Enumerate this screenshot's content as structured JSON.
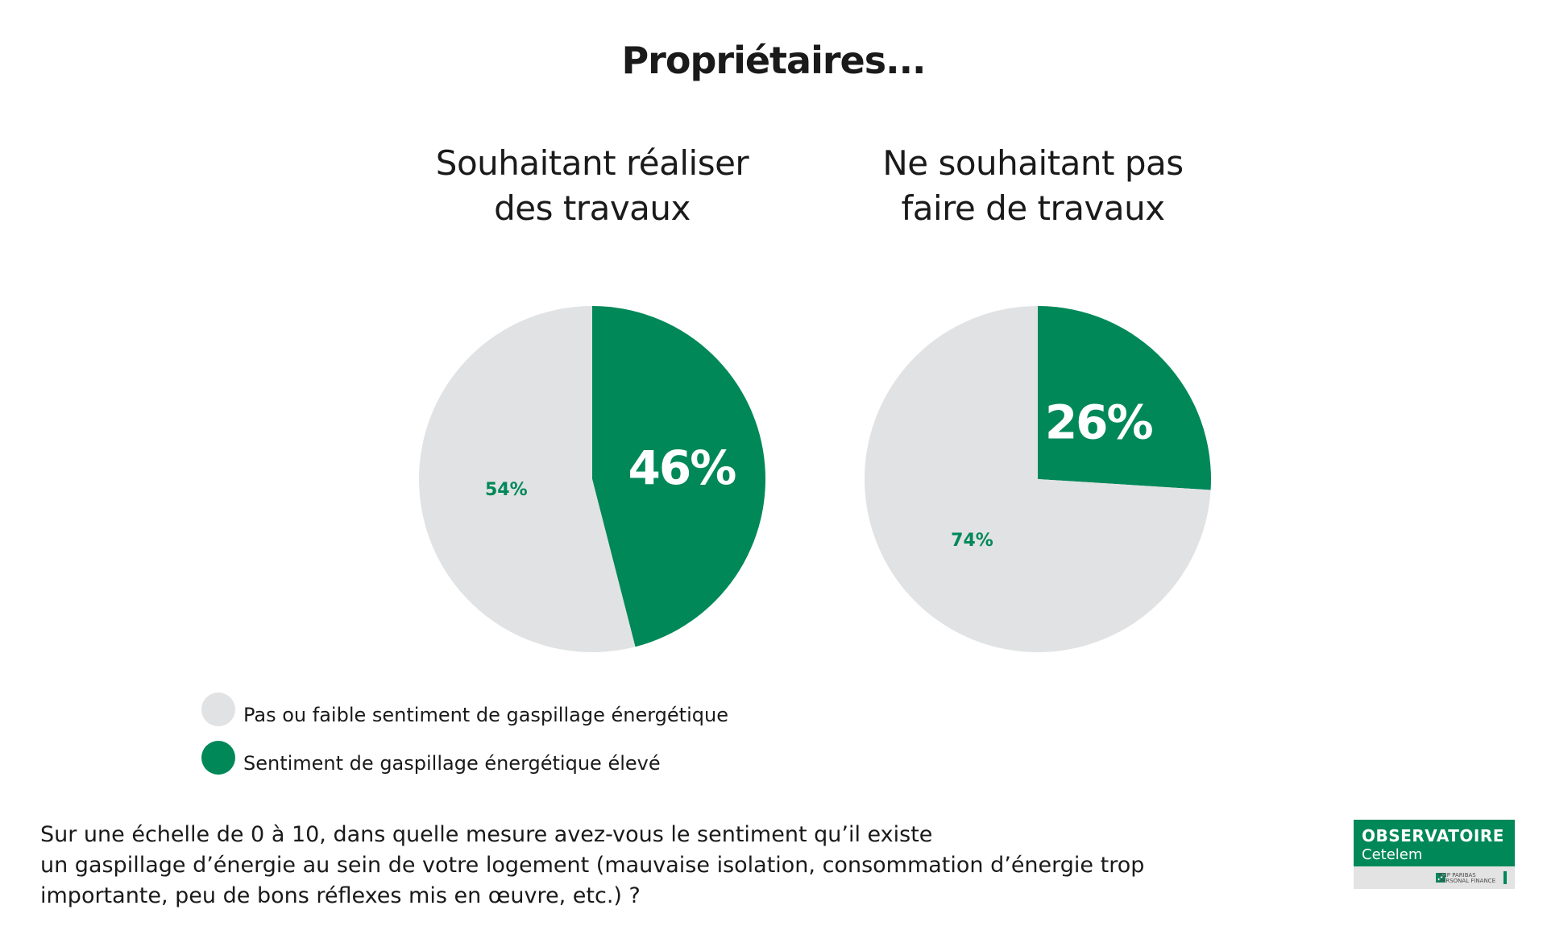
{
  "title": "Propriétaires...",
  "colors": {
    "green": "#008859",
    "grey": "#e1e2e3",
    "white": "#ffffff"
  },
  "chart_data": [
    {
      "type": "pie",
      "title": "Souhaitant réaliser des travaux",
      "title_lines": [
        "Souhaitant réaliser",
        "des travaux"
      ],
      "slices": [
        {
          "name": "Sentiment de gaspillage énergétique élevé",
          "value": 46,
          "label": "46%",
          "color": "#008859"
        },
        {
          "name": "Pas ou faible sentiment de gaspillage énergétique",
          "value": 54,
          "label": "54%",
          "color": "#e1e2e3"
        }
      ]
    },
    {
      "type": "pie",
      "title": "Ne souhaitant pas faire de travaux",
      "title_lines": [
        "Ne souhaitant pas",
        "faire de travaux"
      ],
      "slices": [
        {
          "name": "Sentiment de gaspillage énergétique élevé",
          "value": 26,
          "label": "26%",
          "color": "#008859"
        },
        {
          "name": "Pas ou faible sentiment de gaspillage énergétique",
          "value": 74,
          "label": "74%",
          "color": "#e1e2e3"
        }
      ]
    }
  ],
  "legend": [
    {
      "label": "Pas ou faible sentiment de gaspillage énergétique",
      "color": "#e1e2e3"
    },
    {
      "label": "Sentiment de gaspillage énergétique élevé",
      "color": "#008859"
    }
  ],
  "question_lines": [
    "Sur une échelle de 0 à 10, dans quelle mesure avez-vous le sentiment qu’il existe",
    "un gaspillage d’énergie au sein de votre logement (mauvaise isolation, consommation d’énergie trop",
    "importante, peu de bons réflexes mis en œuvre, etc.) ?"
  ],
  "logo": {
    "line1": "OBSERVATOIRE",
    "line2": "Cetelem",
    "sub1": "BNP PARIBAS",
    "sub2": "PERSONAL FINANCE"
  }
}
